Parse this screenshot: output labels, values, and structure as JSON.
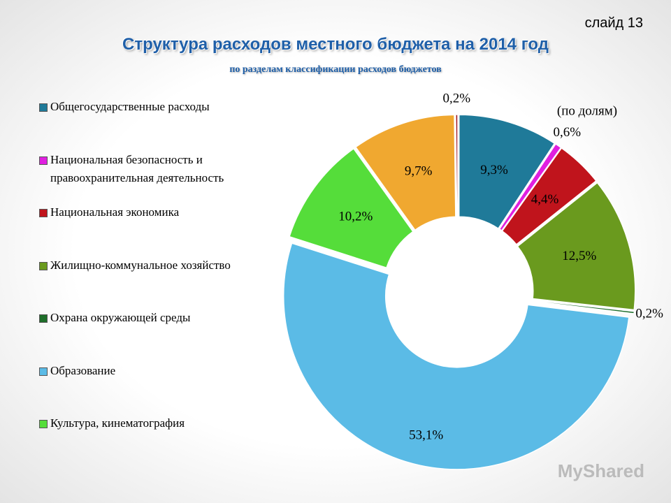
{
  "slide_label": "слайд 13",
  "watermark": "MyShared",
  "chart_data": {
    "type": "donut",
    "title": "Структура расходов местного бюджета на 2014 год",
    "subtitle": "по разделам классификации расходов бюджетов",
    "annotation": "(по долям)",
    "categories": [
      "Общегосударственные расходы",
      "Национальная безопасность и правоохранительная деятельность",
      "Национальная экономика",
      "Жилищно-коммунальное хозяйство",
      "Охрана окружающей среды",
      "Образование",
      "Культура, кинематография",
      null,
      null
    ],
    "values": [
      9.3,
      0.6,
      4.4,
      12.5,
      0.2,
      53.1,
      10.2,
      9.7,
      0.2
    ],
    "value_labels": [
      "9,3%",
      "0,6%",
      "4,4%",
      "12,5%",
      "0,2%",
      "53,1%",
      "10,2%",
      "9,7%",
      "0,2%"
    ],
    "colors": [
      "#1f7a99",
      "#e020e0",
      "#c0141c",
      "#6a9a1e",
      "#1e6e2a",
      "#5bbbe6",
      "#55dd3a",
      "#f0a830",
      "#a0141c"
    ],
    "legend": "left"
  }
}
